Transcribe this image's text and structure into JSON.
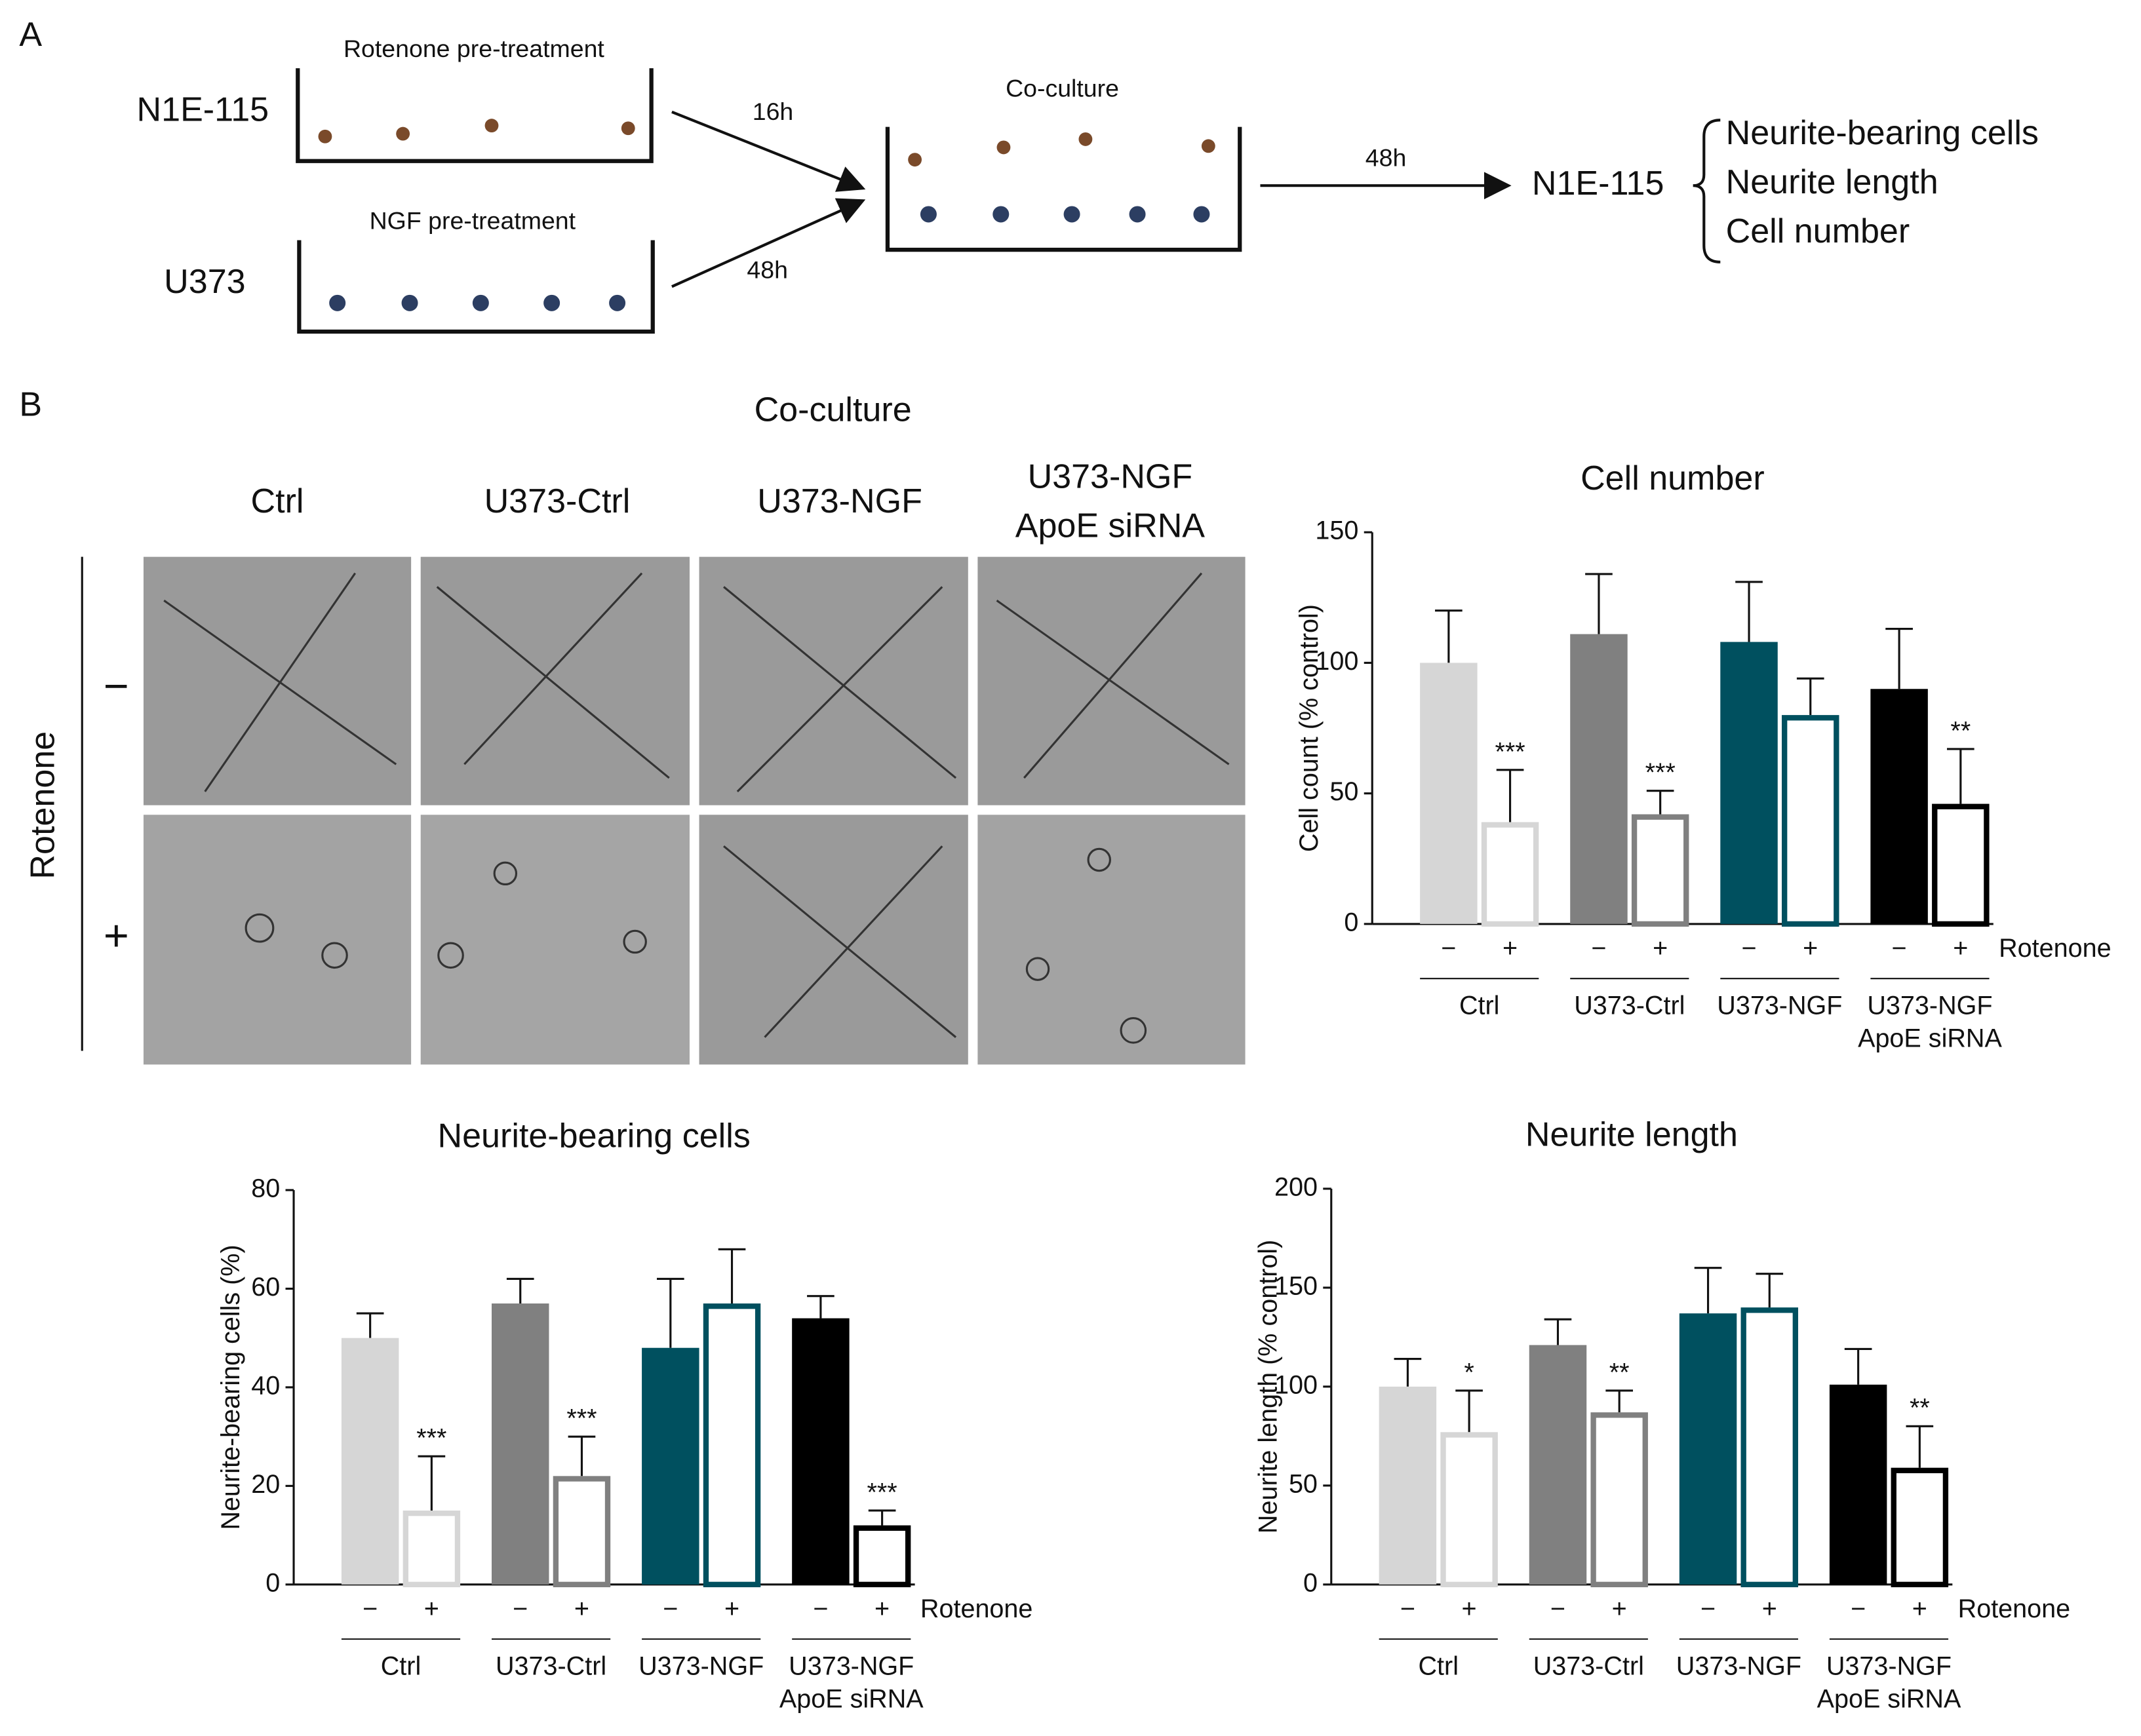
{
  "panel_a": {
    "label": "A",
    "n1e": "N1E-115",
    "u373": "U373",
    "rot_pre": "Rotenone pre-treatment",
    "ngf_pre": "NGF pre-treatment",
    "t16": "16h",
    "t48a": "48h",
    "coculture": "Co-culture",
    "t48b": "48h",
    "target": "N1E-115",
    "readouts": [
      "Neurite-bearing cells",
      "Neurite length",
      "Cell number"
    ]
  },
  "panel_b": {
    "label": "B",
    "title": "Co-culture",
    "columns": [
      [
        "Ctrl"
      ],
      [
        "U373-Ctrl"
      ],
      [
        "U373-NGF"
      ],
      [
        "U373-NGF",
        "ApoE siRNA"
      ]
    ],
    "row_title": "Rotenone",
    "rows": [
      "−",
      "+"
    ]
  },
  "chart_data": [
    {
      "type": "bar",
      "title": "Cell number",
      "ylabel": "Cell count (% control)",
      "x_label": "Rotenone",
      "categories": [
        [
          "Ctrl"
        ],
        [
          "U373-Ctrl"
        ],
        [
          "U373-NGF"
        ],
        [
          "U373-NGF",
          "ApoE siRNA"
        ]
      ],
      "colors": [
        "#d6d6d6",
        "#808080",
        "#00505f",
        "#000000"
      ],
      "ylim": [
        0,
        150
      ],
      "yticks": [
        0,
        50,
        100,
        150
      ],
      "series": [
        {
          "name": "−",
          "outline": false,
          "values": [
            100,
            111,
            108,
            90
          ],
          "errors": [
            20,
            23,
            23,
            23
          ],
          "annotations": [
            null,
            null,
            null,
            null
          ]
        },
        {
          "name": "+",
          "outline": true,
          "values": [
            39,
            42,
            80,
            46
          ],
          "errors": [
            20,
            9,
            14,
            21
          ],
          "annotations": [
            "***",
            "***",
            null,
            "**"
          ]
        }
      ]
    },
    {
      "type": "bar",
      "title": "Neurite-bearing cells",
      "ylabel": "Neurite-bearing cells (%)",
      "x_label": "Rotenone",
      "categories": [
        [
          "Ctrl"
        ],
        [
          "U373-Ctrl"
        ],
        [
          "U373-NGF"
        ],
        [
          "U373-NGF",
          "ApoE siRNA"
        ]
      ],
      "colors": [
        "#d6d6d6",
        "#808080",
        "#00505f",
        "#000000"
      ],
      "ylim": [
        0,
        80
      ],
      "yticks": [
        0,
        20,
        40,
        60,
        80
      ],
      "series": [
        {
          "name": "−",
          "outline": false,
          "values": [
            50,
            57,
            48,
            54
          ],
          "errors": [
            5,
            5,
            14,
            4.5
          ],
          "annotations": [
            null,
            null,
            null,
            null
          ]
        },
        {
          "name": "+",
          "outline": true,
          "values": [
            15,
            22,
            57,
            12
          ],
          "errors": [
            11,
            8,
            11,
            3
          ],
          "annotations": [
            "***",
            "***",
            null,
            "***"
          ]
        }
      ]
    },
    {
      "type": "bar",
      "title": "Neurite length",
      "ylabel": "Neurite length (% control)",
      "x_label": "Rotenone",
      "categories": [
        [
          "Ctrl"
        ],
        [
          "U373-Ctrl"
        ],
        [
          "U373-NGF"
        ],
        [
          "U373-NGF",
          "ApoE siRNA"
        ]
      ],
      "colors": [
        "#d6d6d6",
        "#808080",
        "#00505f",
        "#000000"
      ],
      "ylim": [
        0,
        200
      ],
      "yticks": [
        0,
        50,
        100,
        150,
        200
      ],
      "series": [
        {
          "name": "−",
          "outline": false,
          "values": [
            100,
            121,
            137,
            101
          ],
          "errors": [
            14,
            13,
            23,
            18
          ],
          "annotations": [
            null,
            null,
            null,
            null
          ]
        },
        {
          "name": "+",
          "outline": true,
          "values": [
            77,
            87,
            140,
            59
          ],
          "errors": [
            21,
            11,
            17,
            21
          ],
          "annotations": [
            "*",
            "**",
            null,
            "**"
          ]
        }
      ]
    }
  ]
}
